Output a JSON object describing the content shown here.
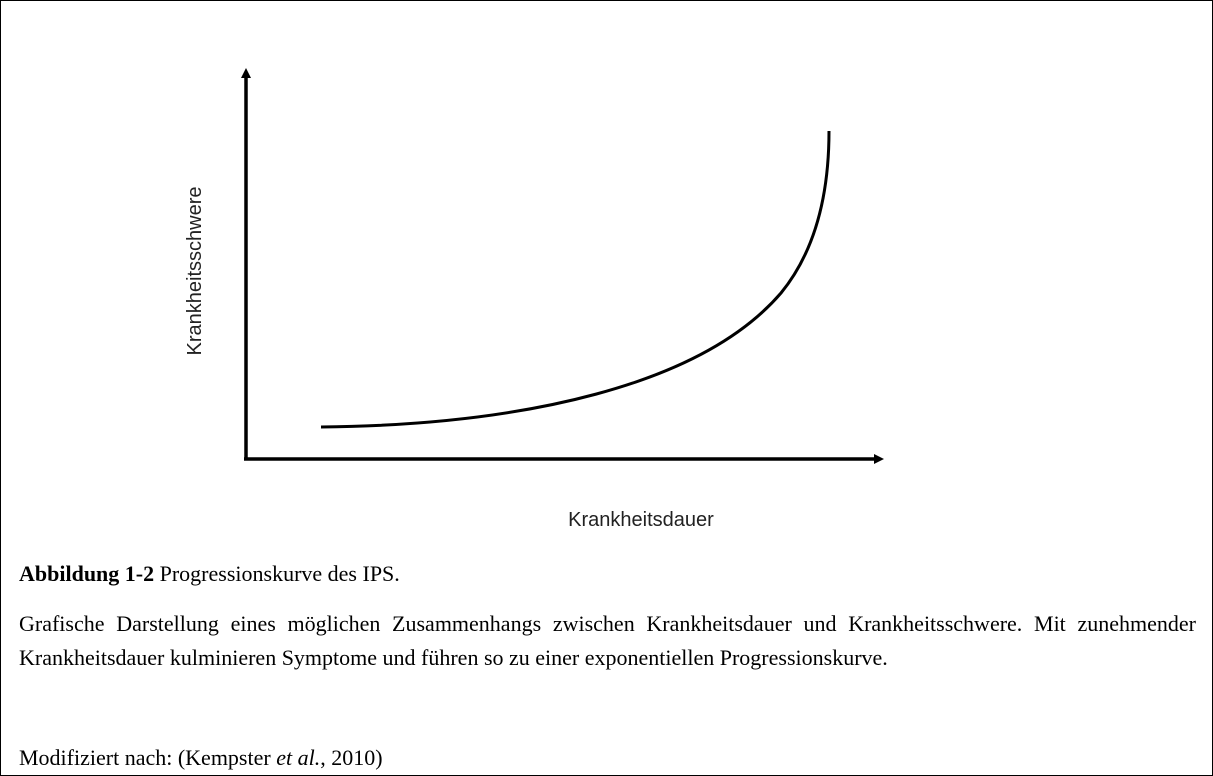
{
  "figure": {
    "y_axis_label": "Krankheitsschwere",
    "x_axis_label": "Krankheitsdauer"
  },
  "caption": {
    "label": "Abbildung 1-2",
    "title": "Progressionskurve des IPS.",
    "description": "Grafische Darstellung eines möglichen Zusammenhangs zwischen Krankheitsdauer und Krankheitsschwere. Mit zunehmender Krankheitsdauer kulminieren Symptome und führen so zu einer exponentiellen Progressionskurve.",
    "source": {
      "prefix": "Modifiziert nach: (Kempster",
      "emphasis": "et al.",
      "suffix": ", 2010)"
    }
  }
}
